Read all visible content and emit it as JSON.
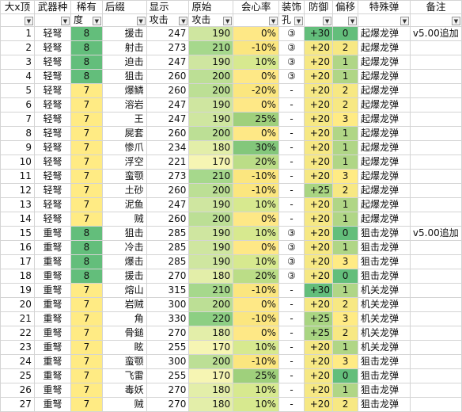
{
  "header": {
    "row1": [
      "大x顶",
      "武器种",
      "稀有",
      "后缀",
      "显示",
      "原始",
      "会心率",
      "装饰",
      "防御",
      "偏移",
      "特殊弹",
      "备注"
    ],
    "row2": [
      "",
      "",
      "度",
      "",
      "攻击",
      "攻击",
      "",
      "孔",
      "",
      "",
      "",
      ""
    ]
  },
  "colors": {
    "rarity_8": "#63be7b",
    "rarity_7": "#ffeb84"
  },
  "rows": [
    {
      "idx": "1",
      "type": "轻弩",
      "rarity": "8",
      "suffix": "援击",
      "disp": "247",
      "raw": "190",
      "crit": "0%",
      "slot": "③",
      "def": "+30",
      "dev": "0",
      "ammo": "起爆龙弹",
      "note": "v5.00追加",
      "raw_bg": "#cfe6a0",
      "crit_bg": "#fee886",
      "def_bg": "#63be7b",
      "dev_bg": "#63be7b"
    },
    {
      "idx": "2",
      "type": "轻弩",
      "rarity": "8",
      "suffix": "射击",
      "disp": "273",
      "raw": "210",
      "crit": "-10%",
      "slot": "③",
      "def": "+20",
      "dev": "2",
      "ammo": "起爆龙弹",
      "note": "",
      "raw_bg": "#a6d88c",
      "crit_bg": "#fbe67f",
      "def_bg": "#f6e884",
      "dev_bg": "#f7e883"
    },
    {
      "idx": "3",
      "type": "轻弩",
      "rarity": "8",
      "suffix": "迫击",
      "disp": "247",
      "raw": "190",
      "crit": "10%",
      "slot": "③",
      "def": "+20",
      "dev": "1",
      "ammo": "起爆龙弹",
      "note": "",
      "raw_bg": "#cfe6a0",
      "crit_bg": "#d7e98f",
      "def_bg": "#f6e884",
      "dev_bg": "#b0d686"
    },
    {
      "idx": "4",
      "type": "轻弩",
      "rarity": "8",
      "suffix": "狙击",
      "disp": "260",
      "raw": "200",
      "crit": "0%",
      "slot": "③",
      "def": "+20",
      "dev": "1",
      "ammo": "起爆龙弹",
      "note": "",
      "raw_bg": "#bcdf95",
      "crit_bg": "#fee886",
      "def_bg": "#f6e884",
      "dev_bg": "#b0d686"
    },
    {
      "idx": "5",
      "type": "轻弩",
      "rarity": "7",
      "suffix": "爆鳞",
      "disp": "260",
      "raw": "200",
      "crit": "-20%",
      "slot": "-",
      "def": "+20",
      "dev": "2",
      "ammo": "起爆龙弹",
      "note": "",
      "raw_bg": "#bcdf95",
      "crit_bg": "#fbe67f",
      "def_bg": "#f6e884",
      "dev_bg": "#f7e883"
    },
    {
      "idx": "6",
      "type": "轻弩",
      "rarity": "7",
      "suffix": "溶岩",
      "disp": "247",
      "raw": "190",
      "crit": "0%",
      "slot": "-",
      "def": "+20",
      "dev": "2",
      "ammo": "起爆龙弹",
      "note": "",
      "raw_bg": "#cfe6a0",
      "crit_bg": "#fee886",
      "def_bg": "#f6e884",
      "dev_bg": "#f7e883"
    },
    {
      "idx": "7",
      "type": "轻弩",
      "rarity": "7",
      "suffix": "王",
      "disp": "247",
      "raw": "190",
      "crit": "25%",
      "slot": "-",
      "def": "+20",
      "dev": "3",
      "ammo": "起爆龙弹",
      "note": "",
      "raw_bg": "#cfe6a0",
      "crit_bg": "#9fd07c",
      "def_bg": "#f6e884",
      "dev_bg": "#ffeb84"
    },
    {
      "idx": "8",
      "type": "轻弩",
      "rarity": "7",
      "suffix": "屍套",
      "disp": "260",
      "raw": "200",
      "crit": "0%",
      "slot": "-",
      "def": "+20",
      "dev": "1",
      "ammo": "起爆龙弹",
      "note": "",
      "raw_bg": "#bcdf95",
      "crit_bg": "#fee886",
      "def_bg": "#f6e884",
      "dev_bg": "#b0d686"
    },
    {
      "idx": "9",
      "type": "轻弩",
      "rarity": "7",
      "suffix": "惨爪",
      "disp": "234",
      "raw": "180",
      "crit": "30%",
      "slot": "-",
      "def": "+20",
      "dev": "1",
      "ammo": "起爆龙弹",
      "note": "",
      "raw_bg": "#e3eea9",
      "crit_bg": "#83c77b",
      "def_bg": "#f6e884",
      "dev_bg": "#b0d686"
    },
    {
      "idx": "10",
      "type": "轻弩",
      "rarity": "7",
      "suffix": "浮空",
      "disp": "221",
      "raw": "170",
      "crit": "20%",
      "slot": "-",
      "def": "+20",
      "dev": "1",
      "ammo": "起爆龙弹",
      "note": "",
      "raw_bg": "#f6f5b3",
      "crit_bg": "#bbdd87",
      "def_bg": "#f6e884",
      "dev_bg": "#b0d686"
    },
    {
      "idx": "11",
      "type": "轻弩",
      "rarity": "7",
      "suffix": "蛮颚",
      "disp": "273",
      "raw": "210",
      "crit": "-10%",
      "slot": "-",
      "def": "+20",
      "dev": "3",
      "ammo": "起爆龙弹",
      "note": "",
      "raw_bg": "#a6d88c",
      "crit_bg": "#fbe67f",
      "def_bg": "#f6e884",
      "dev_bg": "#ffeb84"
    },
    {
      "idx": "12",
      "type": "轻弩",
      "rarity": "7",
      "suffix": "土砂",
      "disp": "260",
      "raw": "200",
      "crit": "-10%",
      "slot": "-",
      "def": "+25",
      "dev": "2",
      "ammo": "起爆龙弹",
      "note": "",
      "raw_bg": "#bcdf95",
      "crit_bg": "#fbe67f",
      "def_bg": "#a9d582",
      "dev_bg": "#f7e883"
    },
    {
      "idx": "13",
      "type": "轻弩",
      "rarity": "7",
      "suffix": "泥鱼",
      "disp": "247",
      "raw": "190",
      "crit": "10%",
      "slot": "-",
      "def": "+20",
      "dev": "1",
      "ammo": "起爆龙弹",
      "note": "",
      "raw_bg": "#cfe6a0",
      "crit_bg": "#d7e98f",
      "def_bg": "#f6e884",
      "dev_bg": "#b0d686"
    },
    {
      "idx": "14",
      "type": "轻弩",
      "rarity": "7",
      "suffix": "贼",
      "disp": "260",
      "raw": "200",
      "crit": "0%",
      "slot": "-",
      "def": "+20",
      "dev": "1",
      "ammo": "起爆龙弹",
      "note": "",
      "raw_bg": "#bcdf95",
      "crit_bg": "#fee886",
      "def_bg": "#f6e884",
      "dev_bg": "#b0d686"
    },
    {
      "idx": "15",
      "type": "重弩",
      "rarity": "8",
      "suffix": "狙击",
      "disp": "285",
      "raw": "190",
      "crit": "10%",
      "slot": "③",
      "def": "+20",
      "dev": "0",
      "ammo": "狙击龙弹",
      "note": "v5.00追加",
      "raw_bg": "#cfe6a0",
      "crit_bg": "#d7e98f",
      "def_bg": "#f6e884",
      "dev_bg": "#63be7b"
    },
    {
      "idx": "16",
      "type": "重弩",
      "rarity": "8",
      "suffix": "冷击",
      "disp": "285",
      "raw": "190",
      "crit": "0%",
      "slot": "③",
      "def": "+20",
      "dev": "1",
      "ammo": "狙击龙弹",
      "note": "",
      "raw_bg": "#cfe6a0",
      "crit_bg": "#fee886",
      "def_bg": "#f6e884",
      "dev_bg": "#b0d686"
    },
    {
      "idx": "17",
      "type": "重弩",
      "rarity": "8",
      "suffix": "爆击",
      "disp": "285",
      "raw": "190",
      "crit": "10%",
      "slot": "③",
      "def": "+20",
      "dev": "3",
      "ammo": "狙击龙弹",
      "note": "",
      "raw_bg": "#cfe6a0",
      "crit_bg": "#d7e98f",
      "def_bg": "#f6e884",
      "dev_bg": "#ffeb84"
    },
    {
      "idx": "18",
      "type": "重弩",
      "rarity": "8",
      "suffix": "援击",
      "disp": "270",
      "raw": "180",
      "crit": "20%",
      "slot": "③",
      "def": "+20",
      "dev": "0",
      "ammo": "狙击龙弹",
      "note": "",
      "raw_bg": "#e3eea9",
      "crit_bg": "#bbdd87",
      "def_bg": "#f6e884",
      "dev_bg": "#63be7b"
    },
    {
      "idx": "19",
      "type": "重弩",
      "rarity": "7",
      "suffix": "熔山",
      "disp": "315",
      "raw": "210",
      "crit": "-10%",
      "slot": "-",
      "def": "+30",
      "dev": "1",
      "ammo": "机关龙弹",
      "note": "",
      "raw_bg": "#a6d88c",
      "crit_bg": "#fbe67f",
      "def_bg": "#63be7b",
      "dev_bg": "#b0d686"
    },
    {
      "idx": "20",
      "type": "重弩",
      "rarity": "7",
      "suffix": "岩贼",
      "disp": "300",
      "raw": "200",
      "crit": "0%",
      "slot": "-",
      "def": "+20",
      "dev": "2",
      "ammo": "机关龙弹",
      "note": "",
      "raw_bg": "#bcdf95",
      "crit_bg": "#fee886",
      "def_bg": "#f6e884",
      "dev_bg": "#f7e883"
    },
    {
      "idx": "21",
      "type": "重弩",
      "rarity": "7",
      "suffix": "角",
      "disp": "330",
      "raw": "220",
      "crit": "-10%",
      "slot": "-",
      "def": "+25",
      "dev": "3",
      "ammo": "机关龙弹",
      "note": "",
      "raw_bg": "#8dcf83",
      "crit_bg": "#fbe67f",
      "def_bg": "#a9d582",
      "dev_bg": "#ffeb84"
    },
    {
      "idx": "22",
      "type": "重弩",
      "rarity": "7",
      "suffix": "骨鎚",
      "disp": "270",
      "raw": "180",
      "crit": "0%",
      "slot": "-",
      "def": "+25",
      "dev": "2",
      "ammo": "机关龙弹",
      "note": "",
      "raw_bg": "#e3eea9",
      "crit_bg": "#fee886",
      "def_bg": "#a9d582",
      "dev_bg": "#f7e883"
    },
    {
      "idx": "23",
      "type": "重弩",
      "rarity": "7",
      "suffix": "眩",
      "disp": "255",
      "raw": "170",
      "crit": "10%",
      "slot": "-",
      "def": "+20",
      "dev": "1",
      "ammo": "机关龙弹",
      "note": "",
      "raw_bg": "#f6f5b3",
      "crit_bg": "#d7e98f",
      "def_bg": "#f6e884",
      "dev_bg": "#b0d686"
    },
    {
      "idx": "24",
      "type": "重弩",
      "rarity": "7",
      "suffix": "蛮颚",
      "disp": "300",
      "raw": "200",
      "crit": "-10%",
      "slot": "-",
      "def": "+20",
      "dev": "3",
      "ammo": "狙击龙弹",
      "note": "",
      "raw_bg": "#bcdf95",
      "crit_bg": "#fbe67f",
      "def_bg": "#f6e884",
      "dev_bg": "#ffeb84"
    },
    {
      "idx": "25",
      "type": "重弩",
      "rarity": "7",
      "suffix": "飞雷",
      "disp": "255",
      "raw": "170",
      "crit": "25%",
      "slot": "-",
      "def": "+20",
      "dev": "0",
      "ammo": "狙击龙弹",
      "note": "",
      "raw_bg": "#f6f5b3",
      "crit_bg": "#9fd07c",
      "def_bg": "#f6e884",
      "dev_bg": "#63be7b"
    },
    {
      "idx": "26",
      "type": "重弩",
      "rarity": "7",
      "suffix": "毒妖",
      "disp": "270",
      "raw": "180",
      "crit": "10%",
      "slot": "-",
      "def": "+20",
      "dev": "1",
      "ammo": "狙击龙弹",
      "note": "",
      "raw_bg": "#e3eea9",
      "crit_bg": "#d7e98f",
      "def_bg": "#f6e884",
      "dev_bg": "#b0d686"
    },
    {
      "idx": "27",
      "type": "重弩",
      "rarity": "7",
      "suffix": "贼",
      "disp": "270",
      "raw": "180",
      "crit": "10%",
      "slot": "-",
      "def": "+20",
      "dev": "2",
      "ammo": "狙击龙弹",
      "note": "",
      "raw_bg": "#e3eea9",
      "crit_bg": "#d7e98f",
      "def_bg": "#f6e884",
      "dev_bg": "#f7e883"
    }
  ]
}
